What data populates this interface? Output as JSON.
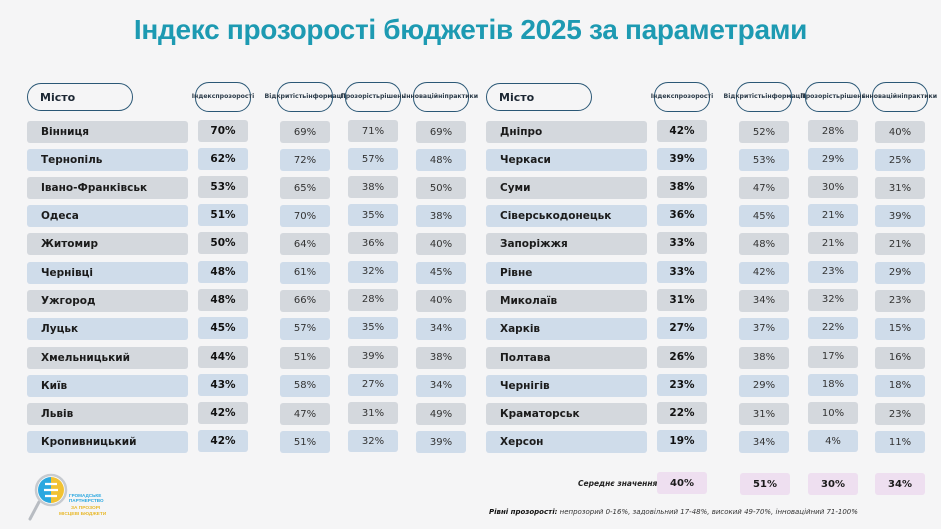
{
  "title": "Індекс прозорості бюджетів 2025 за параметрами",
  "headers": {
    "city": "Місто",
    "index": [
      "Індекс",
      "прозорості"
    ],
    "openness": [
      "Відкритість",
      "інформації"
    ],
    "decisions": [
      "Прозорість",
      "рішень"
    ],
    "innovation": [
      "Інноваційні",
      "практики"
    ]
  },
  "left_rows": [
    {
      "city": "Вінниця",
      "index": "70%",
      "openness": "69%",
      "decisions": "71%",
      "innovation": "69%"
    },
    {
      "city": "Тернопіль",
      "index": "62%",
      "openness": "72%",
      "decisions": "57%",
      "innovation": "48%"
    },
    {
      "city": "Івано-Франківськ",
      "index": "53%",
      "openness": "65%",
      "decisions": "38%",
      "innovation": "50%"
    },
    {
      "city": "Одеса",
      "index": "51%",
      "openness": "70%",
      "decisions": "35%",
      "innovation": "38%"
    },
    {
      "city": "Житомир",
      "index": "50%",
      "openness": "64%",
      "decisions": "36%",
      "innovation": "40%"
    },
    {
      "city": "Чернівці",
      "index": "48%",
      "openness": "61%",
      "decisions": "32%",
      "innovation": "45%"
    },
    {
      "city": "Ужгород",
      "index": "48%",
      "openness": "66%",
      "decisions": "28%",
      "innovation": "40%"
    },
    {
      "city": "Луцьк",
      "index": "45%",
      "openness": "57%",
      "decisions": "35%",
      "innovation": "34%"
    },
    {
      "city": "Хмельницький",
      "index": "44%",
      "openness": "51%",
      "decisions": "39%",
      "innovation": "38%"
    },
    {
      "city": "Київ",
      "index": "43%",
      "openness": "58%",
      "decisions": "27%",
      "innovation": "34%"
    },
    {
      "city": "Львів",
      "index": "42%",
      "openness": "47%",
      "decisions": "31%",
      "innovation": "49%"
    },
    {
      "city": "Кропивницький",
      "index": "42%",
      "openness": "51%",
      "decisions": "32%",
      "innovation": "39%"
    }
  ],
  "right_rows": [
    {
      "city": "Дніпро",
      "index": "42%",
      "openness": "52%",
      "decisions": "28%",
      "innovation": "40%"
    },
    {
      "city": "Черкаси",
      "index": "39%",
      "openness": "53%",
      "decisions": "29%",
      "innovation": "25%"
    },
    {
      "city": "Суми",
      "index": "38%",
      "openness": "47%",
      "decisions": "30%",
      "innovation": "31%"
    },
    {
      "city": "Сіверськодонецьк",
      "index": "36%",
      "openness": "45%",
      "decisions": "21%",
      "innovation": "39%"
    },
    {
      "city": "Запоріжжя",
      "index": "33%",
      "openness": "48%",
      "decisions": "21%",
      "innovation": "21%"
    },
    {
      "city": "Рівне",
      "index": "33%",
      "openness": "42%",
      "decisions": "23%",
      "innovation": "29%"
    },
    {
      "city": "Миколаїв",
      "index": "31%",
      "openness": "34%",
      "decisions": "32%",
      "innovation": "23%"
    },
    {
      "city": "Харків",
      "index": "27%",
      "openness": "37%",
      "decisions": "22%",
      "innovation": "15%"
    },
    {
      "city": "Полтава",
      "index": "26%",
      "openness": "38%",
      "decisions": "17%",
      "innovation": "16%"
    },
    {
      "city": "Чернігів",
      "index": "23%",
      "openness": "29%",
      "decisions": "18%",
      "innovation": "18%"
    },
    {
      "city": "Краматорськ",
      "index": "22%",
      "openness": "31%",
      "decisions": "10%",
      "innovation": "23%"
    },
    {
      "city": "Херсон",
      "index": "19%",
      "openness": "34%",
      "decisions": "4%",
      "innovation": "11%"
    }
  ],
  "average": {
    "label": "Середнє значення",
    "index": "40%",
    "openness": "51%",
    "decisions": "30%",
    "innovation": "34%"
  },
  "legend": {
    "label": "Рівні прозорості:",
    "text": " непрозорий 0-16%, задовільний 17-48%, високий 49-70%, інноваційний 71-100%"
  },
  "logo": {
    "line1": "ГРОМАДСЬКЕ",
    "line2": "ПАРТНЕРСТВО",
    "line3": "ЗА ПРОЗОРІ",
    "line4": "МІСЦЕВІ БЮДЖЕТИ"
  },
  "colors": {
    "title": "#1d9ab2",
    "row_gray": "#d4d8dd",
    "row_blue": "#cfdcea",
    "average": "#eedff0",
    "header_border": "#2b5876"
  }
}
